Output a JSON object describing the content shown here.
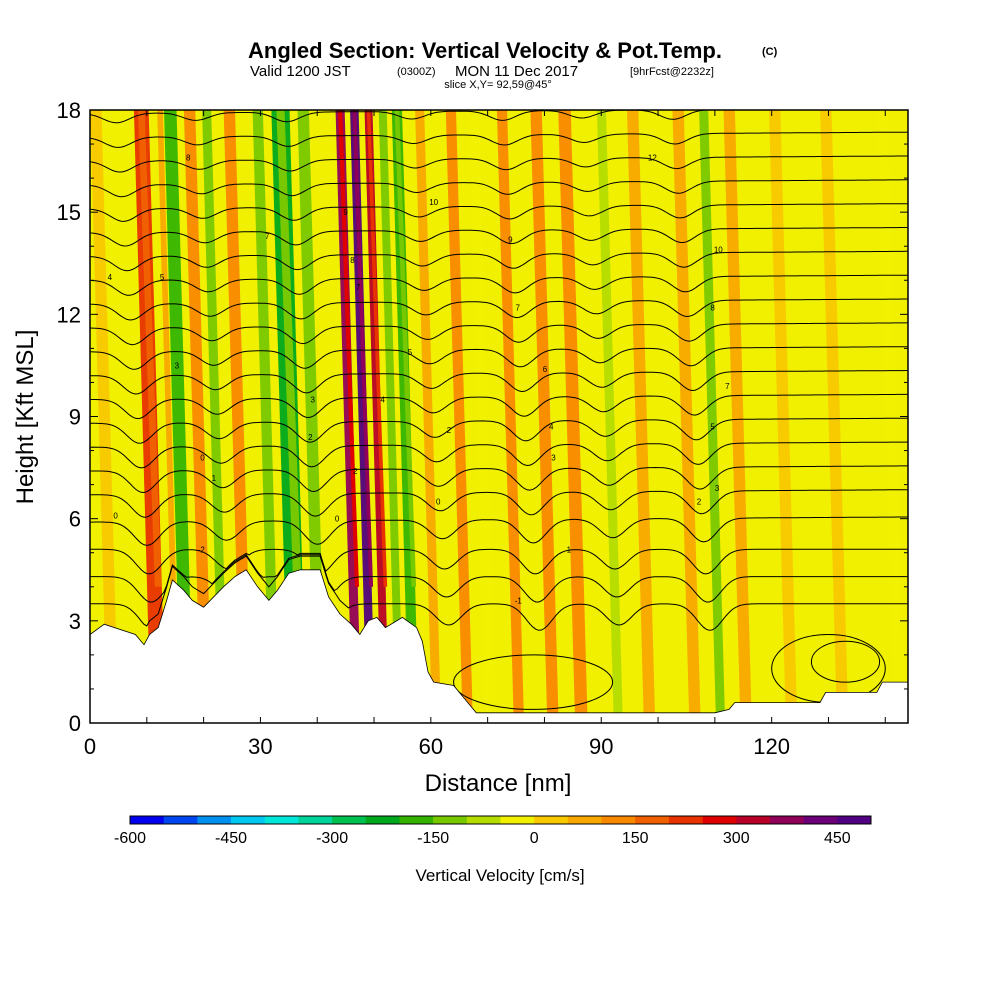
{
  "title": {
    "main": "Angled Section: Vertical Velocity & Pot.Temp.",
    "main_suffix": "(C)",
    "valid_prefix": "Valid 1200 JST",
    "valid_zulu": "(0300Z)",
    "valid_date": "MON 11 Dec 2017",
    "valid_fcst": "[9hrFcst@2232z]",
    "slice": "slice X,Y= 92,59@45°"
  },
  "chart_data": {
    "type": "heatmap",
    "xlabel": "Distance [nm]",
    "ylabel": "Height [Kft MSL]",
    "xlim": [
      0,
      144
    ],
    "ylim": [
      0,
      18
    ],
    "xticks": [
      0,
      30,
      60,
      90,
      120
    ],
    "yticks": [
      0,
      3,
      6,
      9,
      12,
      15,
      18
    ],
    "colorbar": {
      "label": "Vertical Velocity [cm/s]",
      "levels": [
        -600,
        -550,
        -500,
        -450,
        -400,
        -350,
        -300,
        -250,
        -200,
        -150,
        -100,
        -50,
        0,
        50,
        100,
        150,
        200,
        250,
        300,
        350,
        400,
        450,
        500
      ],
      "tick_values": [
        -600,
        -450,
        -300,
        -150,
        0,
        150,
        300,
        450
      ],
      "tick_labels": [
        "-600",
        "-450",
        "-300",
        "-150",
        "0",
        "150",
        "300",
        "450"
      ],
      "colors": [
        "#0000f0",
        "#0046f0",
        "#0090f0",
        "#00c8f0",
        "#00e6d8",
        "#00d49a",
        "#00c050",
        "#00a81e",
        "#34b400",
        "#78c800",
        "#b4dc00",
        "#f0f000",
        "#f8c800",
        "#f8a800",
        "#f88800",
        "#f06000",
        "#e83200",
        "#e00000",
        "#b80028",
        "#90005a",
        "#6c0078",
        "#500080"
      ]
    },
    "velocity_bands": [
      {
        "x": 1.5,
        "width": 2.0,
        "value": 30
      },
      {
        "x": 9.5,
        "width": 2.6,
        "value": 230
      },
      {
        "x": 12.8,
        "width": 1.0,
        "value": 80
      },
      {
        "x": 14.6,
        "width": 2.2,
        "value": -170
      },
      {
        "x": 18.0,
        "width": 2.0,
        "value": 120
      },
      {
        "x": 21.0,
        "width": 1.6,
        "value": -110
      },
      {
        "x": 25.0,
        "width": 2.0,
        "value": 140
      },
      {
        "x": 30.0,
        "width": 1.8,
        "value": -110
      },
      {
        "x": 34.0,
        "width": 3.2,
        "value": -210
      },
      {
        "x": 38.0,
        "width": 2.0,
        "value": -120
      },
      {
        "x": 44.5,
        "width": 1.6,
        "value": 380
      },
      {
        "x": 47.0,
        "width": 1.5,
        "value": 520
      },
      {
        "x": 49.5,
        "width": 1.4,
        "value": 320
      },
      {
        "x": 52.0,
        "width": 1.4,
        "value": -110
      },
      {
        "x": 54.5,
        "width": 1.8,
        "value": -200
      },
      {
        "x": 58.5,
        "width": 1.6,
        "value": 90
      },
      {
        "x": 64.0,
        "width": 1.8,
        "value": 120
      },
      {
        "x": 68.0,
        "width": 2.0,
        "value": -40
      },
      {
        "x": 73.0,
        "width": 1.8,
        "value": 110
      },
      {
        "x": 79.0,
        "width": 2.0,
        "value": 100
      },
      {
        "x": 84.0,
        "width": 2.2,
        "value": 100
      },
      {
        "x": 90.5,
        "width": 1.6,
        "value": -80
      },
      {
        "x": 96.0,
        "width": 2.0,
        "value": 70
      },
      {
        "x": 104.0,
        "width": 2.0,
        "value": 60
      },
      {
        "x": 108.5,
        "width": 1.6,
        "value": -110
      },
      {
        "x": 113.0,
        "width": 2.0,
        "value": 70
      },
      {
        "x": 121.0,
        "width": 2.0,
        "value": 40
      },
      {
        "x": 130.0,
        "width": 2.0,
        "value": 40
      },
      {
        "x": 140.0,
        "width": 2.0,
        "value": -20
      }
    ],
    "terrain": [
      [
        0,
        2.6
      ],
      [
        2.5,
        2.9
      ],
      [
        8,
        2.6
      ],
      [
        9.5,
        2.3
      ],
      [
        10.5,
        2.6
      ],
      [
        12,
        2.8
      ],
      [
        13.5,
        3.6
      ],
      [
        14.5,
        4.2
      ],
      [
        16.5,
        3.9
      ],
      [
        18,
        3.6
      ],
      [
        20,
        3.4
      ],
      [
        23.5,
        4.0
      ],
      [
        25.5,
        4.3
      ],
      [
        27.5,
        4.5
      ],
      [
        29.5,
        4.0
      ],
      [
        31.5,
        3.6
      ],
      [
        33,
        3.9
      ],
      [
        35,
        4.4
      ],
      [
        37,
        4.5
      ],
      [
        40.5,
        4.5
      ],
      [
        42,
        3.7
      ],
      [
        44,
        3.2
      ],
      [
        46,
        2.9
      ],
      [
        47.5,
        2.6
      ],
      [
        49,
        3.0
      ],
      [
        50.5,
        3.1
      ],
      [
        52,
        2.8
      ],
      [
        55,
        3.1
      ],
      [
        57.5,
        2.8
      ],
      [
        58.5,
        2.4
      ],
      [
        59.5,
        1.5
      ],
      [
        60.5,
        1.2
      ],
      [
        64,
        1.1
      ],
      [
        65.5,
        0.8
      ],
      [
        67,
        0.5
      ],
      [
        68,
        0.3
      ],
      [
        70,
        0.3
      ],
      [
        90,
        0.3
      ],
      [
        95,
        0.3
      ],
      [
        110,
        0.3
      ],
      [
        112.5,
        0.4
      ],
      [
        113.5,
        0.6
      ],
      [
        120,
        0.6
      ],
      [
        128.5,
        0.6
      ],
      [
        129.5,
        0.9
      ],
      [
        138.5,
        0.9
      ],
      [
        139.5,
        1.2
      ],
      [
        144,
        1.2
      ]
    ],
    "isentrope_start_heights": [
      3.5,
      4.3,
      5.1,
      5.9,
      6.7,
      7.4,
      8.1,
      8.8,
      9.5,
      10.2,
      10.9,
      11.6,
      12.3,
      13.0,
      13.7,
      14.4,
      15.1,
      15.8,
      16.5,
      17.2,
      17.9
    ],
    "contour_labels": [
      {
        "x": 3.5,
        "y": 13.1,
        "text": "4"
      },
      {
        "x": 12.7,
        "y": 13.1,
        "text": "5"
      },
      {
        "x": 17.3,
        "y": 16.6,
        "text": "8"
      },
      {
        "x": 15.3,
        "y": 10.5,
        "text": "3"
      },
      {
        "x": 19.8,
        "y": 7.8,
        "text": "0"
      },
      {
        "x": 21.8,
        "y": 7.2,
        "text": "1"
      },
      {
        "x": 19.6,
        "y": 5.1,
        "text": "-2"
      },
      {
        "x": 31.2,
        "y": 14.3,
        "text": "7"
      },
      {
        "x": 39.2,
        "y": 9.5,
        "text": "3"
      },
      {
        "x": 38.8,
        "y": 8.4,
        "text": "2"
      },
      {
        "x": 43.5,
        "y": 6.0,
        "text": "0"
      },
      {
        "x": 45.0,
        "y": 15.0,
        "text": "9"
      },
      {
        "x": 46.2,
        "y": 13.6,
        "text": "8"
      },
      {
        "x": 47.2,
        "y": 12.8,
        "text": "7"
      },
      {
        "x": 46.7,
        "y": 7.4,
        "text": "2"
      },
      {
        "x": 51.5,
        "y": 9.5,
        "text": "4"
      },
      {
        "x": 56.3,
        "y": 10.9,
        "text": "5"
      },
      {
        "x": 63.2,
        "y": 8.6,
        "text": "2"
      },
      {
        "x": 61.3,
        "y": 6.5,
        "text": "0"
      },
      {
        "x": 60.5,
        "y": 15.3,
        "text": "10"
      },
      {
        "x": 74.0,
        "y": 14.2,
        "text": "9"
      },
      {
        "x": 75.3,
        "y": 12.2,
        "text": "7"
      },
      {
        "x": 80.1,
        "y": 10.4,
        "text": "6"
      },
      {
        "x": 81.2,
        "y": 8.7,
        "text": "4"
      },
      {
        "x": 81.6,
        "y": 7.8,
        "text": "3"
      },
      {
        "x": 84.3,
        "y": 5.1,
        "text": "1"
      },
      {
        "x": 75.4,
        "y": 3.6,
        "text": "-1"
      },
      {
        "x": 99.0,
        "y": 16.6,
        "text": "12"
      },
      {
        "x": 110.6,
        "y": 13.9,
        "text": "10"
      },
      {
        "x": 109.6,
        "y": 12.2,
        "text": "8"
      },
      {
        "x": 112.2,
        "y": 9.9,
        "text": "7"
      },
      {
        "x": 109.6,
        "y": 8.7,
        "text": "5"
      },
      {
        "x": 110.4,
        "y": 6.9,
        "text": "3"
      },
      {
        "x": 107.2,
        "y": 6.5,
        "text": "2"
      },
      {
        "x": 4.5,
        "y": 6.1,
        "text": "0"
      }
    ]
  }
}
